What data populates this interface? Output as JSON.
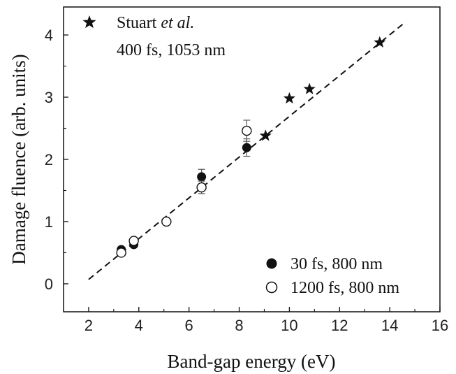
{
  "chart_data": {
    "type": "scatter",
    "title": "",
    "xlabel": "Band-gap energy (eV)",
    "ylabel": "Damage fluence (arb. units)",
    "xlim": [
      1,
      16
    ],
    "ylim": [
      -0.45,
      4.45
    ],
    "x_ticks": [
      2,
      4,
      6,
      8,
      10,
      12,
      14,
      16
    ],
    "y_ticks": [
      0,
      1,
      2,
      3,
      4
    ],
    "grid": false,
    "series": [
      {
        "name": "30 fs, 800 nm",
        "marker": "filled-circle",
        "points": [
          {
            "x": 3.3,
            "y": 0.55
          },
          {
            "x": 3.8,
            "y": 0.63
          },
          {
            "x": 6.5,
            "y": 1.72,
            "err": 0.12
          },
          {
            "x": 8.3,
            "y": 2.19,
            "err": 0.14
          }
        ]
      },
      {
        "name": "1200 fs, 800 nm",
        "marker": "open-circle",
        "points": [
          {
            "x": 3.3,
            "y": 0.5
          },
          {
            "x": 3.8,
            "y": 0.69
          },
          {
            "x": 5.1,
            "y": 1.0
          },
          {
            "x": 6.5,
            "y": 1.55,
            "err": 0.1
          },
          {
            "x": 8.3,
            "y": 2.46,
            "err": 0.17
          }
        ]
      },
      {
        "name": "Stuart et al. 400 fs, 1053 nm",
        "marker": "star",
        "points": [
          {
            "x": 9.05,
            "y": 2.38
          },
          {
            "x": 10.0,
            "y": 2.98
          },
          {
            "x": 10.8,
            "y": 3.13
          },
          {
            "x": 13.6,
            "y": 3.88
          }
        ]
      }
    ],
    "fit_line": {
      "style": "dashed",
      "x": [
        2.0,
        14.6
      ],
      "y": [
        0.07,
        4.2
      ]
    }
  },
  "legend": {
    "stuart": {
      "name_prefix": "Stuart ",
      "name_italic": "et al.",
      "params": "400 fs, 1053 nm"
    },
    "filled": "30 fs, 800 nm",
    "open": "1200 fs, 800 nm"
  }
}
